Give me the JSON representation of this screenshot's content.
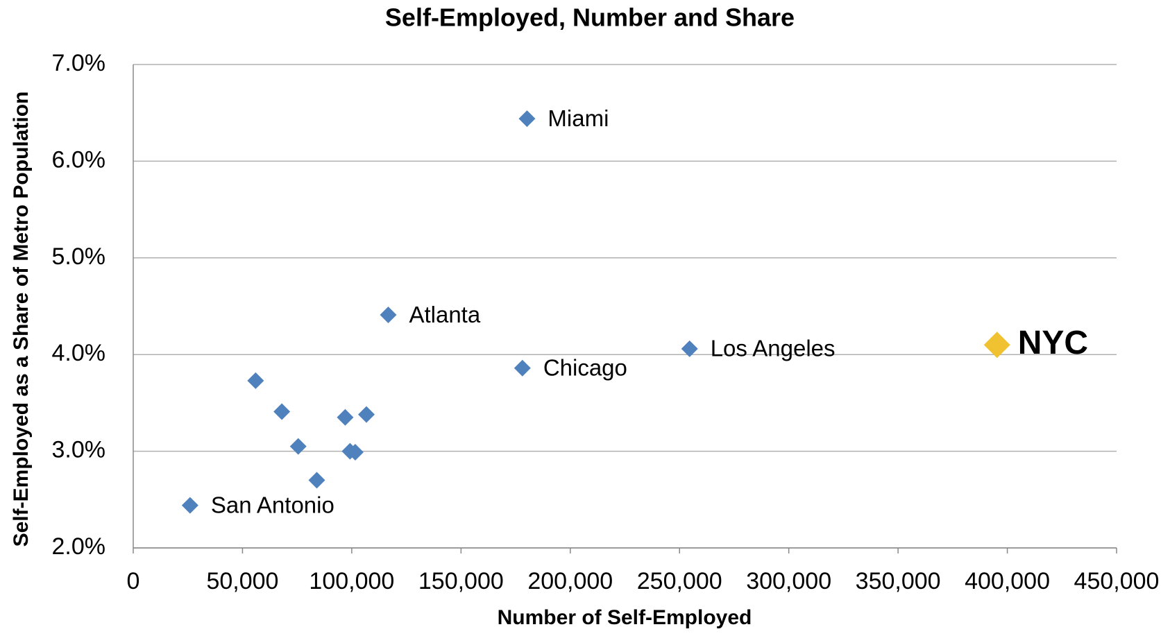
{
  "chart_data": {
    "type": "scatter",
    "title": "Self-Employed, Number and Share",
    "x_label": "Number of Self-Employed",
    "y_label": "Self-Employed as a Share of Metro Population",
    "x": [
      26000,
      56000,
      68000,
      75500,
      84000,
      97000,
      106700,
      99200,
      101600,
      116700,
      178100,
      180200,
      254600,
      395300
    ],
    "values": [
      2.44,
      3.73,
      3.41,
      3.05,
      2.7,
      3.35,
      3.38,
      3.0,
      2.99,
      4.41,
      3.86,
      6.44,
      4.06,
      4.1
    ],
    "labels": [
      "San Antonio",
      null,
      null,
      null,
      null,
      null,
      null,
      null,
      null,
      "Atlanta",
      "Chicago",
      "Miami",
      "Los Angeles",
      "NYC"
    ],
    "colors": [
      "#4f81bd",
      "#4f81bd",
      "#4f81bd",
      "#4f81bd",
      "#4f81bd",
      "#4f81bd",
      "#4f81bd",
      "#4f81bd",
      "#4f81bd",
      "#4f81bd",
      "#4f81bd",
      "#4f81bd",
      "#4f81bd",
      "#f0c232"
    ],
    "xlim": [
      0,
      450000
    ],
    "xticks": [
      0,
      {
        "value": 50000,
        "label": "50,000"
      },
      {
        "value": 100000,
        "label": "100,000"
      },
      {
        "value": 150000,
        "label": "150,000"
      },
      {
        "value": 200000,
        "label": "200,000"
      },
      {
        "value": 250000,
        "label": "250,000"
      },
      {
        "value": 300000,
        "label": "300,000"
      },
      {
        "value": 350000,
        "label": "350,000"
      },
      {
        "value": 400000,
        "label": "400,000"
      },
      {
        "value": 450000,
        "label": "450,000"
      }
    ],
    "ylim": [
      2,
      7
    ],
    "yticks": [
      {
        "value": 2,
        "label": "2.0%"
      },
      {
        "value": 3,
        "label": "3.0%"
      },
      {
        "value": 4,
        "label": "4.0%"
      },
      {
        "value": 5,
        "label": "5.0%"
      },
      {
        "value": 6,
        "label": "6.0%"
      },
      {
        "value": 7,
        "label": "7.0%"
      }
    ],
    "grid": true
  }
}
